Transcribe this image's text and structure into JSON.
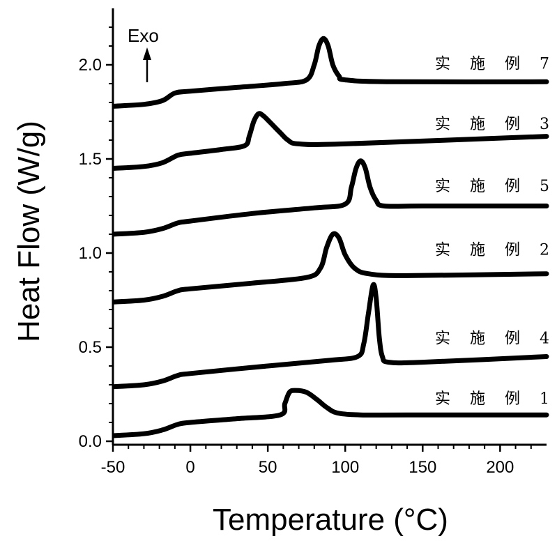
{
  "chart_data": {
    "type": "line",
    "title": "",
    "xlabel": "Temperature (°C)",
    "ylabel": "Heat Flow (W/g)",
    "xlim": [
      -50,
      230
    ],
    "ylim": [
      0.0,
      2.3
    ],
    "xticks": [
      -50,
      0,
      50,
      100,
      150,
      200
    ],
    "yticks": [
      0.0,
      0.5,
      1.0,
      1.5,
      2.0
    ],
    "annotation": "Exo",
    "grid": false,
    "series": [
      {
        "name": "实 施 例 7",
        "label_pos": [
          158,
          1.98
        ],
        "points": [
          [
            -50,
            1.78
          ],
          [
            -30,
            1.79
          ],
          [
            -18,
            1.81
          ],
          [
            -10,
            1.85
          ],
          [
            0,
            1.86
          ],
          [
            30,
            1.88
          ],
          [
            60,
            1.9
          ],
          [
            75,
            1.92
          ],
          [
            80,
            2.0
          ],
          [
            83,
            2.1
          ],
          [
            86,
            2.14
          ],
          [
            89,
            2.1
          ],
          [
            92,
            2.0
          ],
          [
            96,
            1.94
          ],
          [
            100,
            1.92
          ],
          [
            130,
            1.91
          ],
          [
            230,
            1.91
          ]
        ]
      },
      {
        "name": "实 施 例 3",
        "label_pos": [
          158,
          1.66
        ],
        "points": [
          [
            -50,
            1.45
          ],
          [
            -30,
            1.46
          ],
          [
            -18,
            1.48
          ],
          [
            -8,
            1.52
          ],
          [
            0,
            1.53
          ],
          [
            20,
            1.55
          ],
          [
            35,
            1.57
          ],
          [
            38,
            1.62
          ],
          [
            41,
            1.7
          ],
          [
            44,
            1.74
          ],
          [
            47,
            1.73
          ],
          [
            52,
            1.69
          ],
          [
            58,
            1.64
          ],
          [
            63,
            1.6
          ],
          [
            70,
            1.58
          ],
          [
            100,
            1.58
          ],
          [
            230,
            1.62
          ]
        ]
      },
      {
        "name": "实 施 例 5",
        "label_pos": [
          158,
          1.33
        ],
        "points": [
          [
            -50,
            1.1
          ],
          [
            -30,
            1.11
          ],
          [
            -18,
            1.13
          ],
          [
            -8,
            1.16
          ],
          [
            0,
            1.17
          ],
          [
            40,
            1.21
          ],
          [
            80,
            1.24
          ],
          [
            100,
            1.26
          ],
          [
            104,
            1.35
          ],
          [
            107,
            1.45
          ],
          [
            110,
            1.49
          ],
          [
            113,
            1.45
          ],
          [
            116,
            1.35
          ],
          [
            120,
            1.28
          ],
          [
            125,
            1.25
          ],
          [
            150,
            1.25
          ],
          [
            230,
            1.25
          ]
        ]
      },
      {
        "name": "实 施 例 2",
        "label_pos": [
          158,
          0.99
        ],
        "points": [
          [
            -50,
            0.74
          ],
          [
            -30,
            0.75
          ],
          [
            -18,
            0.77
          ],
          [
            -8,
            0.8
          ],
          [
            0,
            0.81
          ],
          [
            40,
            0.84
          ],
          [
            75,
            0.87
          ],
          [
            84,
            0.92
          ],
          [
            88,
            1.03
          ],
          [
            92,
            1.1
          ],
          [
            96,
            1.08
          ],
          [
            100,
            0.99
          ],
          [
            106,
            0.92
          ],
          [
            115,
            0.89
          ],
          [
            140,
            0.88
          ],
          [
            230,
            0.89
          ]
        ]
      },
      {
        "name": "实 施 例 4",
        "label_pos": [
          158,
          0.52
        ],
        "points": [
          [
            -50,
            0.29
          ],
          [
            -30,
            0.3
          ],
          [
            -18,
            0.32
          ],
          [
            -8,
            0.35
          ],
          [
            0,
            0.36
          ],
          [
            50,
            0.4
          ],
          [
            90,
            0.43
          ],
          [
            108,
            0.45
          ],
          [
            112,
            0.52
          ],
          [
            115,
            0.68
          ],
          [
            118,
            0.83
          ],
          [
            120,
            0.76
          ],
          [
            122,
            0.55
          ],
          [
            124,
            0.45
          ],
          [
            128,
            0.42
          ],
          [
            150,
            0.42
          ],
          [
            230,
            0.45
          ]
        ]
      },
      {
        "name": "实 施 例 1",
        "label_pos": [
          158,
          0.2
        ],
        "points": [
          [
            -50,
            0.03
          ],
          [
            -30,
            0.04
          ],
          [
            -18,
            0.06
          ],
          [
            -8,
            0.09
          ],
          [
            0,
            0.1
          ],
          [
            30,
            0.12
          ],
          [
            58,
            0.14
          ],
          [
            61,
            0.2
          ],
          [
            64,
            0.26
          ],
          [
            68,
            0.27
          ],
          [
            75,
            0.26
          ],
          [
            82,
            0.22
          ],
          [
            88,
            0.18
          ],
          [
            95,
            0.15
          ],
          [
            110,
            0.14
          ],
          [
            140,
            0.14
          ],
          [
            230,
            0.14
          ]
        ]
      }
    ]
  }
}
